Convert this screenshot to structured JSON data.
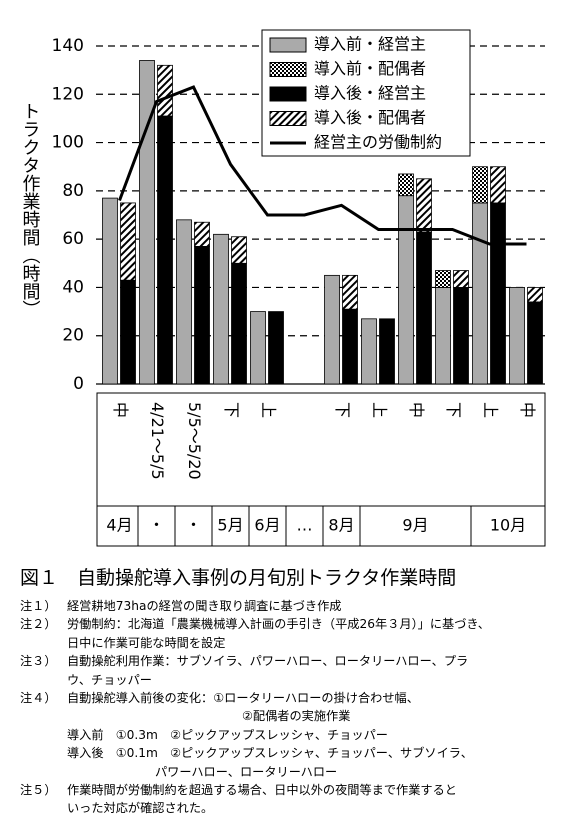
{
  "chart_data": {
    "type": "bar",
    "y_label": "トラクタ作業時間（時間）",
    "categories": [
      "中",
      "4/21～5/5",
      "5/5～5/20",
      "下",
      "上",
      null,
      "下",
      "上",
      "中",
      "下",
      "上",
      "中"
    ],
    "months": [
      {
        "label": "4月",
        "categories": [
          0,
          0
        ]
      },
      {
        "label": "・",
        "categories": [
          1,
          1
        ]
      },
      {
        "label": "・",
        "categories": [
          2,
          2
        ]
      },
      {
        "label": "5月",
        "categories": [
          3,
          3
        ]
      },
      {
        "label": "6月",
        "categories": [
          4,
          4
        ]
      },
      {
        "label": "…",
        "categories": [
          5,
          5
        ]
      },
      {
        "label": "8月",
        "categories": [
          6,
          6
        ]
      },
      {
        "label": "9月",
        "categories": [
          7,
          9
        ]
      },
      {
        "label": "10月",
        "categories": [
          10,
          11
        ]
      }
    ],
    "series": [
      {
        "name": "導入前・経営主",
        "color": "#aaaaaa",
        "pattern": "solid",
        "stack": 0,
        "values": [
          77,
          134,
          68,
          62,
          30,
          null,
          45,
          27,
          78,
          40,
          75,
          40
        ]
      },
      {
        "name": "導入前・配偶者",
        "color": "#000000",
        "pattern": "dots",
        "stack": 0,
        "values": [
          0,
          0,
          0,
          0,
          0,
          null,
          0,
          0,
          9,
          7,
          15,
          0
        ]
      },
      {
        "name": "導入後・経営主",
        "color": "#000000",
        "pattern": "solid",
        "stack": 1,
        "values": [
          43,
          111,
          57,
          50,
          30,
          null,
          31,
          27,
          63,
          40,
          75,
          34
        ]
      },
      {
        "name": "導入後・配偶者",
        "color": "#000000",
        "pattern": "hatch",
        "stack": 1,
        "values": [
          32,
          21,
          10,
          11,
          0,
          null,
          14,
          0,
          22,
          7,
          15,
          6
        ]
      },
      {
        "name": "経営主の労働制約",
        "color": "#000000",
        "type": "line",
        "values": [
          76,
          117,
          123,
          91,
          70,
          70,
          74,
          64,
          64,
          64,
          58,
          58
        ]
      }
    ],
    "ylim": [
      0,
      140
    ],
    "yticks": [
      0,
      20,
      40,
      60,
      80,
      100,
      120,
      140
    ],
    "grid": true,
    "legend": "top-right"
  },
  "caption": "図１　自動操舵導入事例の月旬別トラクタ作業時間",
  "notes": [
    {
      "label": "注１）",
      "lines": [
        "経営耕地73haの経営の聞き取り調査に基づき作成"
      ]
    },
    {
      "label": "注２）",
      "lines": [
        "労働制約：北海道「農業機械導入計画の手引き（平成26年３月）」に基づき、",
        "日中に作業可能な時間を設定"
      ]
    },
    {
      "label": "注３）",
      "lines": [
        "自動操舵利用作業：サブソイラ、パワーハロー、ロータリーハロー、プラ",
        "ウ、チョッパー"
      ]
    },
    {
      "label": "注４）",
      "lines": [
        "自動操舵導入前後の変化：①ロータリーハローの掛け合わせ幅、",
        "②配偶者の実施作業",
        "導入前　①0.3m　②ピックアップスレッシャ、チョッパー",
        "導入後　①0.1m　②ピックアップスレッシャ、チョッパー、サブソイラ、",
        "パワーハロー、ロータリーハロー"
      ]
    },
    {
      "label": "注５）",
      "lines": [
        "作業時間が労働制約を超過する場合、日中以外の夜間等まで作業すると",
        "いった対応が確認された。"
      ]
    }
  ]
}
